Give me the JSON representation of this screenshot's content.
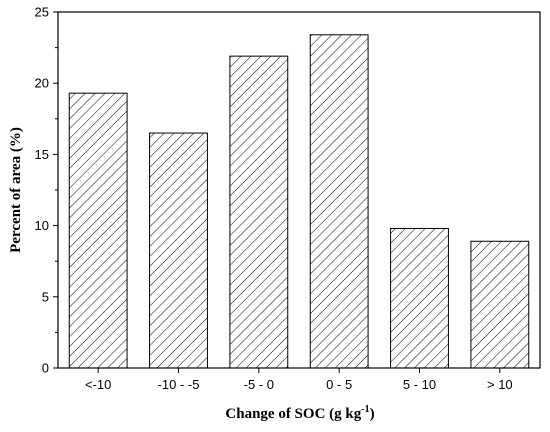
{
  "chart_data": {
    "type": "bar",
    "categories": [
      "<-10",
      "-10 - -5",
      "-5 - 0",
      "0 - 5",
      "5 - 10",
      "> 10"
    ],
    "values": [
      19.3,
      16.5,
      21.9,
      23.4,
      9.8,
      8.9
    ],
    "title": "",
    "xlabel": "Change of SOC (g kg",
    "xlabel_superscript": "-1",
    "xlabel_suffix": ")",
    "ylabel": "Percent of area (%)",
    "ylim": [
      0,
      25
    ],
    "yticks": [
      0,
      5,
      10,
      15,
      20,
      25
    ],
    "grid": false,
    "bar_fill": "hatched",
    "bar_color": "#000000"
  }
}
